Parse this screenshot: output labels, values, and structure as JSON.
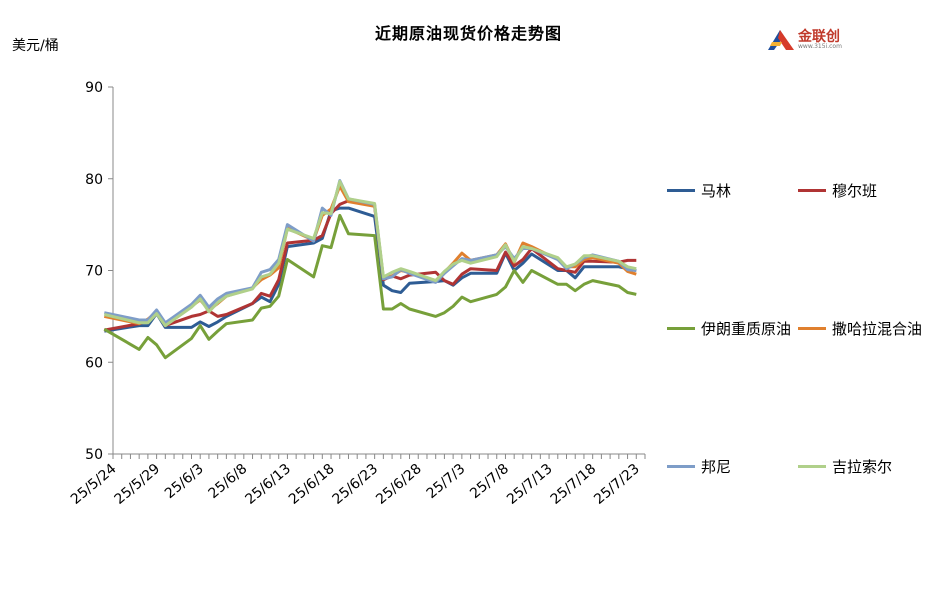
{
  "title": "近期原油现货价格走势图",
  "y_unit": "美元/桶",
  "logo": {
    "text": "金联创",
    "sub": "www.315i.com",
    "name": "jinlianchuang-logo"
  },
  "chart_data": {
    "type": "line",
    "title": "近期原油现货价格走势图",
    "ylabel": "美元/桶",
    "ylim": [
      50,
      90
    ],
    "yticks": [
      50,
      60,
      70,
      80,
      90
    ],
    "xlim": [
      "2025-05-24",
      "2025-07-24"
    ],
    "xticks": [
      "25/5/24",
      "25/5/29",
      "25/6/3",
      "25/6/8",
      "25/6/13",
      "25/6/18",
      "25/6/23",
      "25/6/28",
      "25/7/3",
      "25/7/8",
      "25/7/13",
      "25/7/18",
      "25/7/23"
    ],
    "grid": false,
    "legend_position": "right",
    "x": [
      "2025-05-23",
      "2025-05-27",
      "2025-05-28",
      "2025-05-29",
      "2025-05-30",
      "2025-06-02",
      "2025-06-03",
      "2025-06-04",
      "2025-06-05",
      "2025-06-06",
      "2025-06-09",
      "2025-06-10",
      "2025-06-11",
      "2025-06-12",
      "2025-06-13",
      "2025-06-16",
      "2025-06-17",
      "2025-06-18",
      "2025-06-19",
      "2025-06-20",
      "2025-06-23",
      "2025-06-24",
      "2025-06-25",
      "2025-06-26",
      "2025-06-27",
      "2025-06-30",
      "2025-07-01",
      "2025-07-02",
      "2025-07-03",
      "2025-07-04",
      "2025-07-07",
      "2025-07-08",
      "2025-07-09",
      "2025-07-10",
      "2025-07-11",
      "2025-07-14",
      "2025-07-15",
      "2025-07-16",
      "2025-07-17",
      "2025-07-18",
      "2025-07-21",
      "2025-07-22",
      "2025-07-23"
    ],
    "series": [
      {
        "name": "马林",
        "color": "#2e5c94",
        "values": [
          63.4,
          64.0,
          64.0,
          65.3,
          63.8,
          63.8,
          64.4,
          63.9,
          64.4,
          65.0,
          66.4,
          67.1,
          66.6,
          68.5,
          72.6,
          73.0,
          73.5,
          76.5,
          76.8,
          76.8,
          75.9,
          68.4,
          67.8,
          67.6,
          68.6,
          68.8,
          68.9,
          68.4,
          69.2,
          69.7,
          69.7,
          71.9,
          70.0,
          70.8,
          71.8,
          70.0,
          70.0,
          69.2,
          70.4,
          70.4,
          70.4,
          70.2,
          70.0
        ]
      },
      {
        "name": "穆尔班",
        "color": "#b03434",
        "values": [
          63.5,
          64.2,
          64.5,
          65.6,
          64.0,
          65.0,
          65.2,
          65.6,
          65.0,
          65.2,
          66.4,
          67.5,
          67.2,
          69.0,
          73.0,
          73.3,
          73.8,
          76.2,
          77.2,
          77.6,
          77.1,
          69.0,
          69.4,
          69.1,
          69.5,
          69.8,
          68.9,
          68.5,
          69.6,
          70.2,
          70.0,
          72.0,
          70.5,
          71.2,
          72.4,
          70.2,
          70.0,
          69.8,
          71.0,
          71.0,
          70.9,
          71.1,
          71.1
        ]
      },
      {
        "name": "伊朗重质原油",
        "color": "#77a03a",
        "values": [
          63.6,
          61.4,
          62.7,
          61.9,
          60.5,
          62.6,
          64.0,
          62.5,
          63.4,
          64.2,
          64.6,
          65.9,
          66.1,
          67.2,
          71.2,
          69.3,
          72.7,
          72.5,
          76.0,
          74.0,
          73.8,
          65.8,
          65.8,
          66.4,
          65.8,
          65.0,
          65.4,
          66.1,
          67.1,
          66.6,
          67.4,
          68.2,
          70.0,
          68.7,
          70.0,
          68.5,
          68.5,
          67.8,
          68.5,
          68.9,
          68.3,
          67.6,
          67.4
        ]
      },
      {
        "name": "撒哈拉混合油",
        "color": "#e0802e",
        "values": [
          65.0,
          64.2,
          64.7,
          65.5,
          64.0,
          66.1,
          66.8,
          65.7,
          66.4,
          67.2,
          68.1,
          69.0,
          69.5,
          70.3,
          74.6,
          73.3,
          76.0,
          76.7,
          79.2,
          77.5,
          77.0,
          69.2,
          69.4,
          70.0,
          69.8,
          68.9,
          69.8,
          70.8,
          71.9,
          71.1,
          71.7,
          72.9,
          70.9,
          73.0,
          72.6,
          71.2,
          70.4,
          70.4,
          71.2,
          71.4,
          70.8,
          69.9,
          69.6
        ]
      },
      {
        "name": "邦尼",
        "color": "#7e9dc8",
        "values": [
          65.4,
          64.6,
          64.6,
          65.7,
          64.3,
          66.3,
          67.3,
          66.0,
          66.9,
          67.5,
          68.1,
          69.8,
          70.1,
          71.2,
          75.0,
          73.2,
          76.8,
          76.0,
          79.8,
          77.8,
          77.2,
          69.1,
          69.3,
          70.1,
          69.7,
          68.7,
          69.7,
          70.5,
          71.3,
          71.1,
          71.7,
          72.6,
          71.3,
          72.4,
          72.4,
          71.2,
          70.2,
          70.7,
          71.4,
          71.7,
          71.0,
          70.1,
          70.0
        ]
      },
      {
        "name": "吉拉索尔",
        "color": "#b0d08a",
        "values": [
          65.2,
          64.3,
          64.3,
          65.3,
          64.0,
          66.0,
          66.9,
          65.5,
          66.5,
          67.2,
          68.0,
          69.3,
          69.6,
          70.8,
          74.5,
          73.5,
          76.3,
          76.2,
          79.7,
          77.8,
          77.3,
          69.3,
          69.8,
          70.2,
          69.9,
          68.9,
          69.9,
          70.7,
          71.1,
          70.8,
          71.5,
          72.8,
          71.0,
          72.6,
          72.4,
          71.4,
          70.4,
          70.7,
          71.6,
          71.6,
          71.0,
          70.4,
          70.2
        ]
      }
    ]
  }
}
